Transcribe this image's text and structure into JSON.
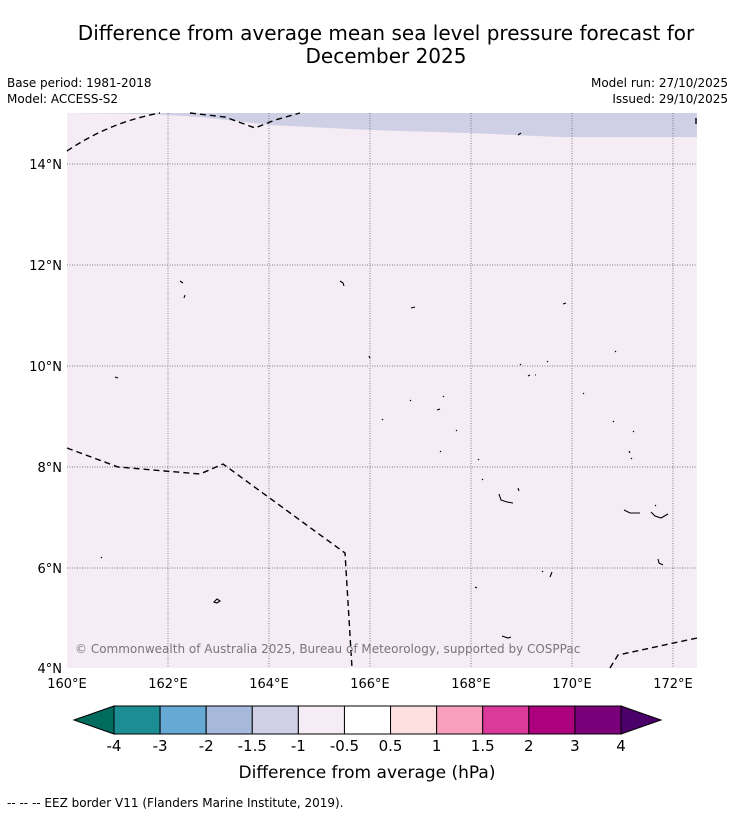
{
  "title": {
    "line1": "Difference from average mean sea level pressure forecast for",
    "line2": "December 2025"
  },
  "meta": {
    "base_period": "Base period: 1981-2018",
    "model": "Model: ACCESS-S2",
    "model_run": "Model run: 27/10/2025",
    "issued": "Issued: 29/10/2025"
  },
  "map": {
    "lat_labels": [
      "14°N",
      "12°N",
      "10°N",
      "8°N",
      "6°N",
      "4°N"
    ],
    "lon_labels": [
      "160°E",
      "162°E",
      "164°E",
      "166°E",
      "168°E",
      "170°E",
      "172°E"
    ],
    "copyright": "© Commonwealth of Australia 2025, Bureau of Meteorology, supported by COSPPac"
  },
  "colorbar": {
    "colors": [
      "#1b8d93",
      "#66a9d4",
      "#a6b9db",
      "#cfcfe6",
      "#f5ecf5",
      "#ffffff",
      "#fde0e0",
      "#f89fbe",
      "#db3a9b",
      "#ad007f",
      "#7a0079"
    ],
    "under_color": "#006c5e",
    "over_color": "#4b0069",
    "labels": [
      "-4",
      "-3",
      "-2",
      "-1.5",
      "-1",
      "-0.5",
      "0.5",
      "1",
      "1.5",
      "2",
      "3",
      "4"
    ],
    "label": "Difference from average (hPa)"
  },
  "legend": {
    "eez": "--  --  -- EEZ border V11 (Flanders Marine Institute, 2019)."
  }
}
